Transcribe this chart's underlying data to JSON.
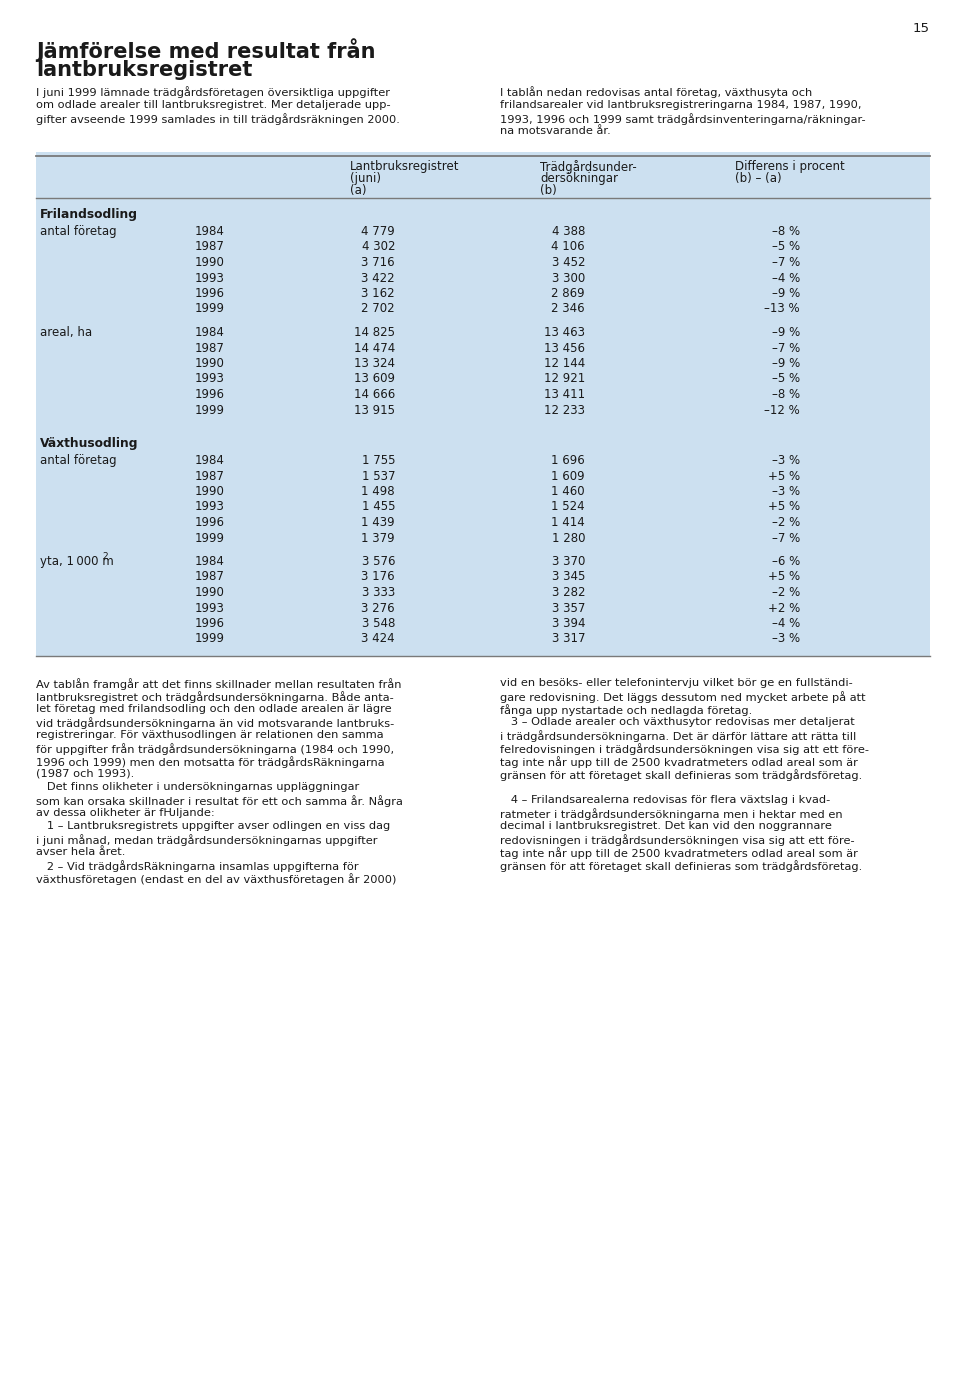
{
  "page_number": "15",
  "title_line1": "Jämförelse med resultat från",
  "title_line2": "lantbruksregistret",
  "left_intro": "I juni 1999 lämnade trädgårdsföretagen översiktliga uppgifter\nom odlade arealer till lantbruksregistret. Mer detaljerade upp-\ngifter avseende 1999 samlades in till trädgårdsräkningen 2000.",
  "right_intro": "I tablån nedan redovisas antal företag, växthusyta och\nfrilandsarealer vid lantbruksregistreringarna 1984, 1987, 1990,\n1993, 1996 och 1999 samt trädgårdsinventeringarna/räkningar-\nna motsvarande år.",
  "bg_color": "#cce0f0",
  "sections": [
    {
      "section_title": "Frilandsodling",
      "subsections": [
        {
          "label": "antal företag",
          "label_super": null,
          "rows": [
            {
              "year": "1984",
              "col_a": "4 779",
              "col_b": "4 388",
              "diff": "–8 %"
            },
            {
              "year": "1987",
              "col_a": "4 302",
              "col_b": "4 106",
              "diff": "–5 %"
            },
            {
              "year": "1990",
              "col_a": "3 716",
              "col_b": "3 452",
              "diff": "–7 %"
            },
            {
              "year": "1993",
              "col_a": "3 422",
              "col_b": "3 300",
              "diff": "–4 %"
            },
            {
              "year": "1996",
              "col_a": "3 162",
              "col_b": "2 869",
              "diff": "–9 %"
            },
            {
              "year": "1999",
              "col_a": "2 702",
              "col_b": "2 346",
              "diff": "–13 %"
            }
          ]
        },
        {
          "label": "areal, ha",
          "label_super": null,
          "rows": [
            {
              "year": "1984",
              "col_a": "14 825",
              "col_b": "13 463",
              "diff": "–9 %"
            },
            {
              "year": "1987",
              "col_a": "14 474",
              "col_b": "13 456",
              "diff": "–7 %"
            },
            {
              "year": "1990",
              "col_a": "13 324",
              "col_b": "12 144",
              "diff": "–9 %"
            },
            {
              "year": "1993",
              "col_a": "13 609",
              "col_b": "12 921",
              "diff": "–5 %"
            },
            {
              "year": "1996",
              "col_a": "14 666",
              "col_b": "13 411",
              "diff": "–8 %"
            },
            {
              "year": "1999",
              "col_a": "13 915",
              "col_b": "12 233",
              "diff": "–12 %"
            }
          ]
        }
      ]
    },
    {
      "section_title": "Växthusodling",
      "subsections": [
        {
          "label": "antal företag",
          "label_super": null,
          "rows": [
            {
              "year": "1984",
              "col_a": "1 755",
              "col_b": "1 696",
              "diff": "–3 %"
            },
            {
              "year": "1987",
              "col_a": "1 537",
              "col_b": "1 609",
              "diff": "+5 %"
            },
            {
              "year": "1990",
              "col_a": "1 498",
              "col_b": "1 460",
              "diff": "–3 %"
            },
            {
              "year": "1993",
              "col_a": "1 455",
              "col_b": "1 524",
              "diff": "+5 %"
            },
            {
              "year": "1996",
              "col_a": "1 439",
              "col_b": "1 414",
              "diff": "–2 %"
            },
            {
              "year": "1999",
              "col_a": "1 379",
              "col_b": "1 280",
              "diff": "–7 %"
            }
          ]
        },
        {
          "label": "yta, 1 000 m",
          "label_super": "2",
          "rows": [
            {
              "year": "1984",
              "col_a": "3 576",
              "col_b": "3 370",
              "diff": "–6 %"
            },
            {
              "year": "1987",
              "col_a": "3 176",
              "col_b": "3 345",
              "diff": "+5 %"
            },
            {
              "year": "1990",
              "col_a": "3 333",
              "col_b": "3 282",
              "diff": "–2 %"
            },
            {
              "year": "1993",
              "col_a": "3 276",
              "col_b": "3 357",
              "diff": "+2 %"
            },
            {
              "year": "1996",
              "col_a": "3 548",
              "col_b": "3 394",
              "diff": "–4 %"
            },
            {
              "year": "1999",
              "col_a": "3 424",
              "col_b": "3 317",
              "diff": "–3 %"
            }
          ]
        }
      ]
    }
  ],
  "bottom_left_text": [
    "Av tablån framgår att det finns skillnader mellan resultaten från",
    "lantbruksregistret och trädgårdsundersökningarna. Både anta-",
    "let företag med frilandsodling och den odlade arealen är lägre",
    "vid trädgårdsundersökningarna än vid motsvarande lantbruks-",
    "registreringar. För växthusodlingen är relationen den samma",
    "för uppgifter från trädgårdsundersökningarna (1984 och 1990,",
    "1996 och 1999) men den motsatta för trädgårdsRäkningarna",
    "(1987 och 1993).",
    "   Det finns olikheter i undersökningarnas uppläggningar",
    "som kan orsaka skillnader i resultat för ett och samma år. Några",
    "av dessa olikheter är fǶljande:",
    "   1 – Lantbruksregistrets uppgifter avser odlingen en viss dag",
    "i juni månad, medan trädgårdsundersökningarnas uppgifter",
    "avser hela året.",
    "   2 – Vid trädgårdsRäkningarna insamlas uppgifterna för",
    "växthusföretagen (endast en del av växthusföretagen år 2000)"
  ],
  "bottom_right_text": [
    "vid en besöks- eller telefonintervju vilket bör ge en fullständi-",
    "gare redovisning. Det läggs dessutom ned mycket arbete på att",
    "fånga upp nystartade och nedlagda företag.",
    "   3 – Odlade arealer och växthusytor redovisas mer detaljerat",
    "i trädgårdsundersökningarna. Det är därför lättare att rätta till",
    "felredovisningen i trädgårdsundersökningen visa sig att ett före-",
    "tag inte når upp till de 2500 kvadratmeters odlad areal som är",
    "gränsen för att företaget skall definieras som trädgårdsföretag.",
    "",
    "   4 – Frilandsarealerna redovisas för flera växtslag i kvad-",
    "ratmeter i trädgårdsundersökningarna men i hektar med en",
    "decimal i lantbruksregistret. Det kan vid den noggrannare",
    "redovisningen i trädgårdsundersökningen visa sig att ett före-",
    "tag inte når upp till de 2500 kvadratmeters odlad areal som är",
    "gränsen för att företaget skall definieras som trädgårdsföretag."
  ]
}
